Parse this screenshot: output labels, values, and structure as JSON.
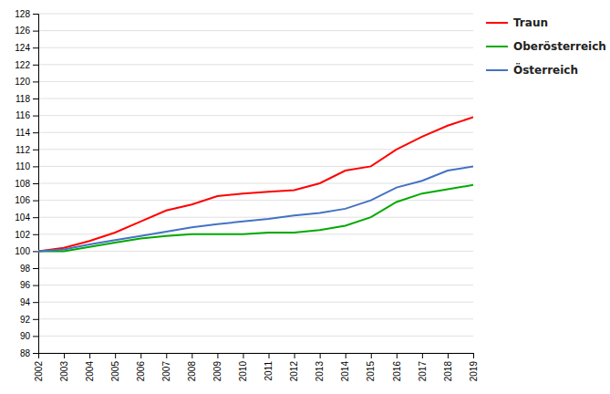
{
  "chart_data": {
    "type": "line",
    "x": [
      2002,
      2003,
      2004,
      2005,
      2006,
      2007,
      2008,
      2009,
      2010,
      2011,
      2012,
      2013,
      2014,
      2015,
      2016,
      2017,
      2018,
      2019
    ],
    "series": [
      {
        "name": "Traun",
        "color": "#FF0000",
        "values": [
          100.0,
          100.4,
          101.2,
          102.2,
          103.5,
          104.8,
          105.5,
          106.5,
          106.8,
          107.0,
          107.2,
          108.0,
          109.5,
          110.0,
          112.0,
          113.5,
          114.8,
          115.8
        ]
      },
      {
        "name": "Oberösterreich",
        "color": "#00AA00",
        "values": [
          100.0,
          100.0,
          100.5,
          101.0,
          101.5,
          101.8,
          102.0,
          102.0,
          102.0,
          102.2,
          102.2,
          102.5,
          103.0,
          104.0,
          105.8,
          106.8,
          107.3,
          107.8
        ]
      },
      {
        "name": "Österreich",
        "color": "#4472C4",
        "values": [
          100.0,
          100.2,
          100.8,
          101.3,
          101.8,
          102.3,
          102.8,
          103.2,
          103.5,
          103.8,
          104.2,
          104.5,
          105.0,
          106.0,
          107.5,
          108.3,
          109.5,
          110.0
        ]
      }
    ],
    "xlim": [
      2002,
      2019
    ],
    "xticks": [
      2002,
      2003,
      2004,
      2005,
      2006,
      2007,
      2008,
      2009,
      2010,
      2011,
      2012,
      2013,
      2014,
      2015,
      2016,
      2017,
      2018,
      2019
    ],
    "ylim": [
      88,
      128
    ],
    "yticks": [
      88,
      90,
      92,
      94,
      96,
      98,
      100,
      102,
      104,
      106,
      108,
      110,
      112,
      114,
      116,
      118,
      120,
      122,
      124,
      126,
      128
    ],
    "grid": true,
    "legend": "right"
  }
}
